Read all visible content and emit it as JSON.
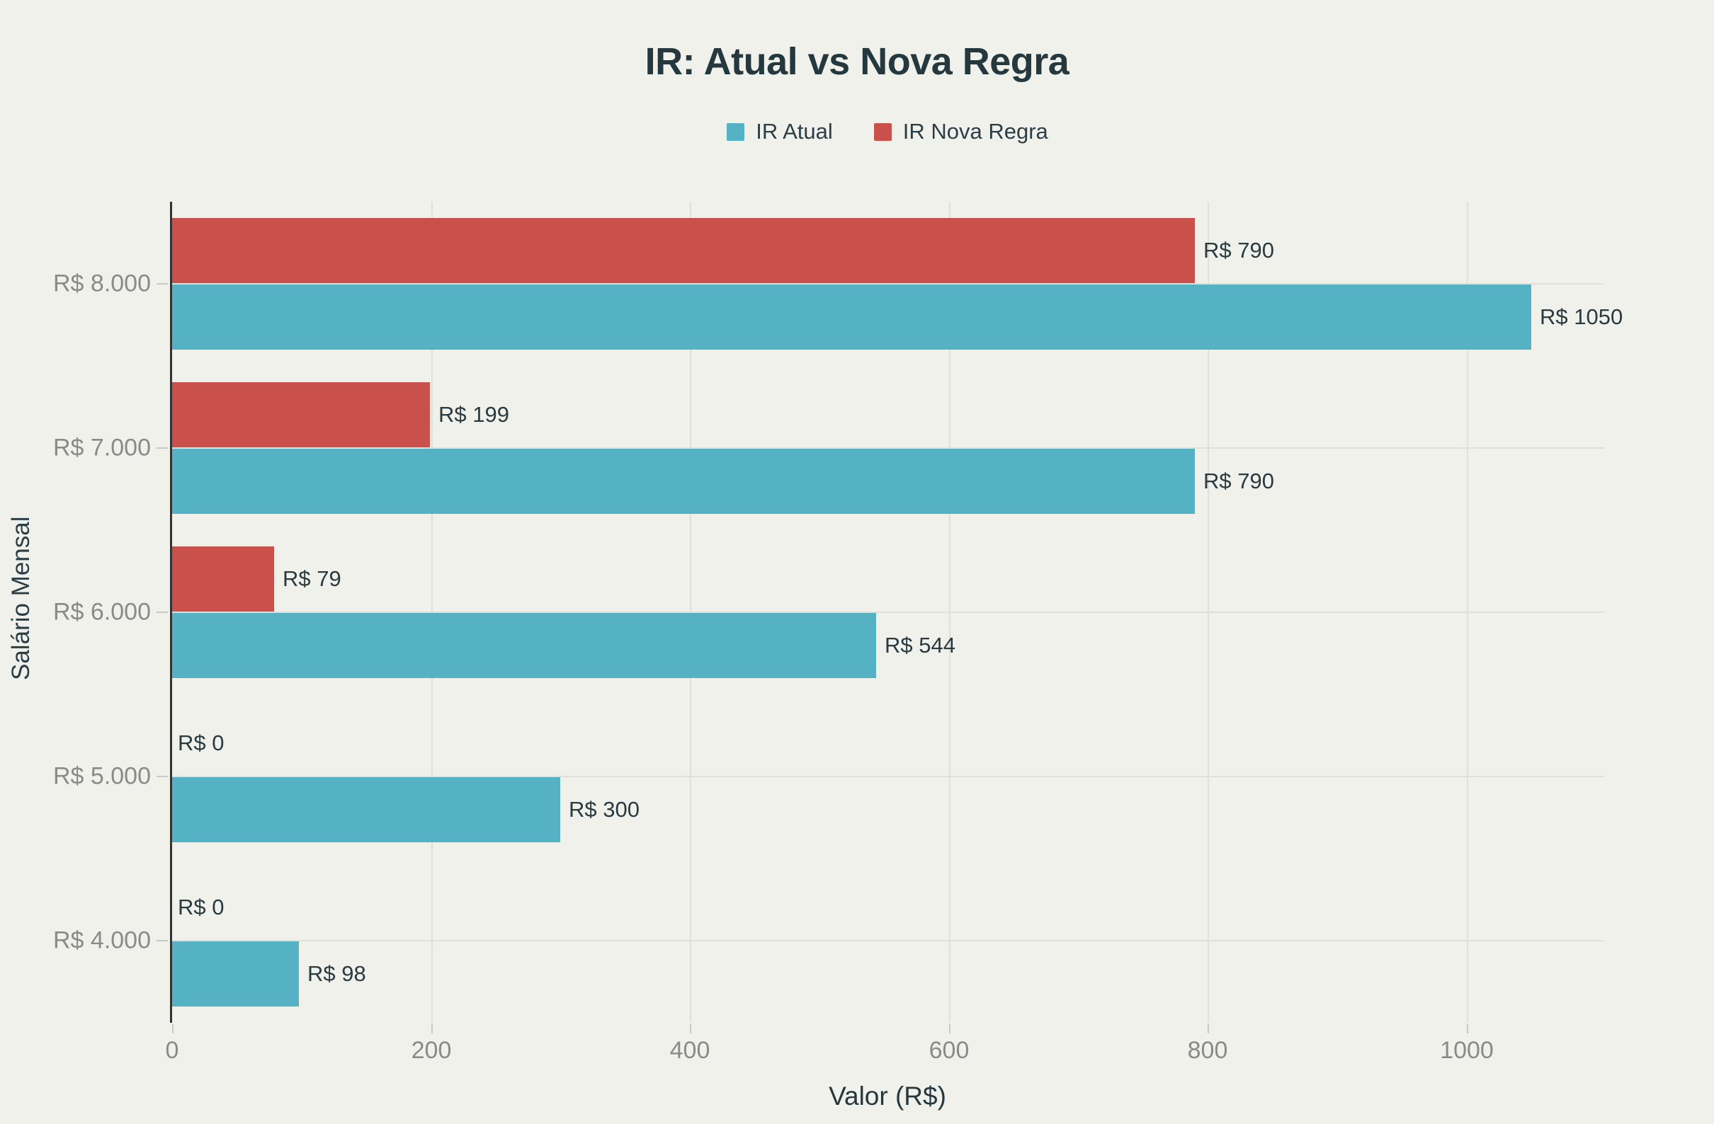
{
  "chart_data": {
    "type": "bar",
    "orientation": "horizontal",
    "title": "IR: Atual vs Nova Regra",
    "xlabel": "Valor (R$)",
    "ylabel": "Salário Mensal",
    "categories": [
      "R$ 8.000",
      "R$ 7.000",
      "R$ 6.000",
      "R$ 5.000",
      "R$ 4.000"
    ],
    "series": [
      {
        "name": "IR Atual",
        "color": "#55B2C4",
        "values": [
          1050,
          790,
          544,
          300,
          98
        ],
        "labels": [
          "R$ 1050",
          "R$ 790",
          "R$ 544",
          "R$ 300",
          "R$ 98"
        ]
      },
      {
        "name": "IR Nova Regra",
        "color": "#C9504B",
        "values": [
          790,
          199,
          79,
          0,
          0
        ],
        "labels": [
          "R$ 790",
          "R$ 199",
          "R$ 79",
          "R$ 0",
          "R$ 0"
        ]
      }
    ],
    "x_ticks": [
      0,
      200,
      400,
      600,
      800,
      1000
    ],
    "x_tick_labels": [
      "0",
      "200",
      "400",
      "600",
      "800",
      "1000"
    ],
    "xlim": [
      0,
      1105
    ],
    "grid": true,
    "legend_position": "top-center"
  },
  "colors": {
    "background": "#F1F1EC",
    "series_atual": "#55B2C4",
    "series_nova_regra": "#C9504B",
    "title_text": "#24383E",
    "tick_text": "#8A8B89",
    "gridline": "#E0DFD9",
    "axis_line": "#333333"
  }
}
